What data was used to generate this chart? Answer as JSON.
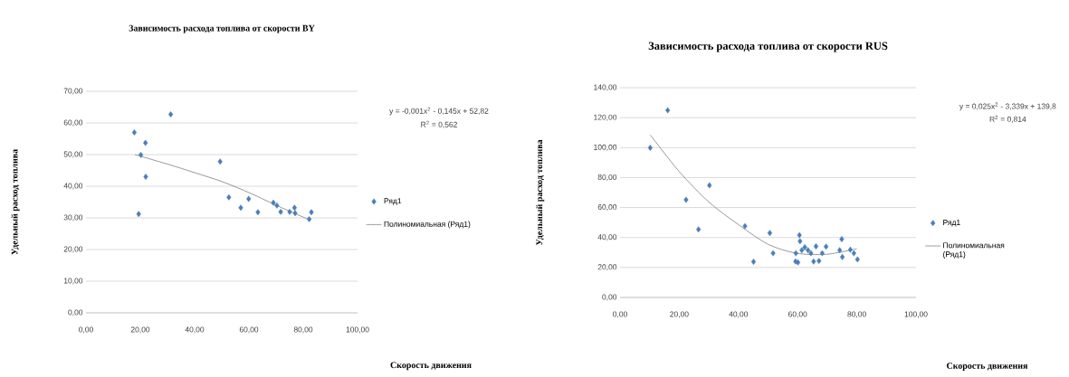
{
  "chart_data": [
    {
      "type": "scatter",
      "title": "Зависимость расхода топлива от скорости BY",
      "xlabel": "Скорость движения",
      "ylabel": "Удельный расход топлива",
      "annotations": [
        "y = -0,001x$^{2}$ - 0,145x + 52,82",
        "R$^{2}$ = 0,562"
      ],
      "xlim": [
        0,
        100
      ],
      "ylim": [
        0,
        70
      ],
      "xticks": [
        {
          "value": 0,
          "label": "0,00"
        },
        {
          "value": 20,
          "label": "20,00"
        },
        {
          "value": 40,
          "label": "40,00"
        },
        {
          "value": 60,
          "label": "60,00"
        },
        {
          "value": 80,
          "label": "80,00"
        },
        {
          "value": 100,
          "label": "100,00"
        }
      ],
      "yticks": [
        {
          "value": 0,
          "label": "0,00"
        },
        {
          "value": 10,
          "label": "10,00"
        },
        {
          "value": 20,
          "label": "20,00"
        },
        {
          "value": 30,
          "label": "30,00"
        },
        {
          "value": 40,
          "label": "40,00"
        },
        {
          "value": 50,
          "label": "50,00"
        },
        {
          "value": 60,
          "label": "60,00"
        },
        {
          "value": 70,
          "label": "70,00"
        }
      ],
      "grid": "y",
      "legend": "right",
      "series": [
        {
          "name": "Ряд1",
          "marker": "diamond",
          "color": "#4a7ebb",
          "x": [
            17.8,
            20.2,
            21.9,
            22.0,
            19.4,
            31.2,
            49.4,
            52.6,
            57.0,
            59.9,
            63.3,
            69.0,
            70.3,
            71.7,
            75.0,
            76.8,
            77.0,
            82.2,
            83.0
          ],
          "values": [
            57.0,
            49.9,
            53.7,
            43.0,
            31.2,
            62.7,
            47.8,
            36.5,
            33.2,
            36.0,
            31.8,
            34.8,
            33.9,
            31.9,
            31.9,
            33.2,
            31.5,
            29.6,
            31.8
          ]
        },
        {
          "name": "Полиномиальная (Ряд1)",
          "type": "line",
          "color": "#7f7f7f",
          "x": [
            18,
            30,
            40,
            50,
            60,
            70,
            82
          ],
          "values": [
            50,
            47,
            44.3,
            41.5,
            38,
            34,
            29.5
          ]
        }
      ]
    },
    {
      "type": "scatter",
      "title": "Зависимость расхода топлива от скорости RUS",
      "xlabel": "Скорость движения",
      "ylabel": "Удельный расход топлива",
      "annotations": [
        "y = 0,025x$^{2}$ - 3,339x + 139,8",
        "R$^{2}$ = 0,814"
      ],
      "xlim": [
        0,
        100
      ],
      "ylim": [
        0,
        140
      ],
      "xticks": [
        {
          "value": 0,
          "label": "0,00"
        },
        {
          "value": 20,
          "label": "20,00"
        },
        {
          "value": 40,
          "label": "40,00"
        },
        {
          "value": 60,
          "label": "60,00"
        },
        {
          "value": 80,
          "label": "80,00"
        },
        {
          "value": 100,
          "label": "100,00"
        }
      ],
      "yticks": [
        {
          "value": 0,
          "label": "0,00"
        },
        {
          "value": 20,
          "label": "20,00"
        },
        {
          "value": 40,
          "label": "40,00"
        },
        {
          "value": 60,
          "label": "60,00"
        },
        {
          "value": 80,
          "label": "80,00"
        },
        {
          "value": 100,
          "label": "100,00"
        },
        {
          "value": 120,
          "label": "120,00"
        },
        {
          "value": 140,
          "label": "140,00"
        }
      ],
      "grid": "y",
      "legend": "right",
      "series": [
        {
          "name": "Ряд1",
          "marker": "diamond",
          "color": "#4a7ebb",
          "x": [
            10.2,
            16.1,
            22.3,
            26.5,
            30.2,
            42.2,
            45.1,
            50.6,
            51.7,
            59.3,
            59.4,
            60.1,
            60.6,
            60.8,
            61.4,
            62.4,
            63.5,
            64.5,
            65.4,
            66.2,
            67.2,
            68.3,
            69.6,
            74.2,
            74.9,
            75.1,
            77.8,
            79.0,
            80.2
          ],
          "values": [
            99.9,
            124.9,
            65.2,
            45.4,
            74.8,
            47.6,
            23.8,
            43.0,
            29.5,
            24.0,
            29.5,
            23.4,
            41.6,
            37.5,
            31.5,
            33.5,
            31.5,
            29.5,
            24.0,
            34.1,
            24.4,
            29.5,
            33.9,
            31.5,
            38.9,
            27.0,
            31.9,
            29.5,
            25.4
          ]
        },
        {
          "name": "Полиномиальная (Ряд1)",
          "type": "line",
          "color": "#7f7f7f",
          "x": [
            10.2,
            20,
            30,
            40,
            50,
            59.6,
            69.8,
            80
          ],
          "values": [
            108.5,
            84,
            63.7,
            48.6,
            35.5,
            29.5,
            28.8,
            32.5
          ]
        }
      ]
    }
  ]
}
